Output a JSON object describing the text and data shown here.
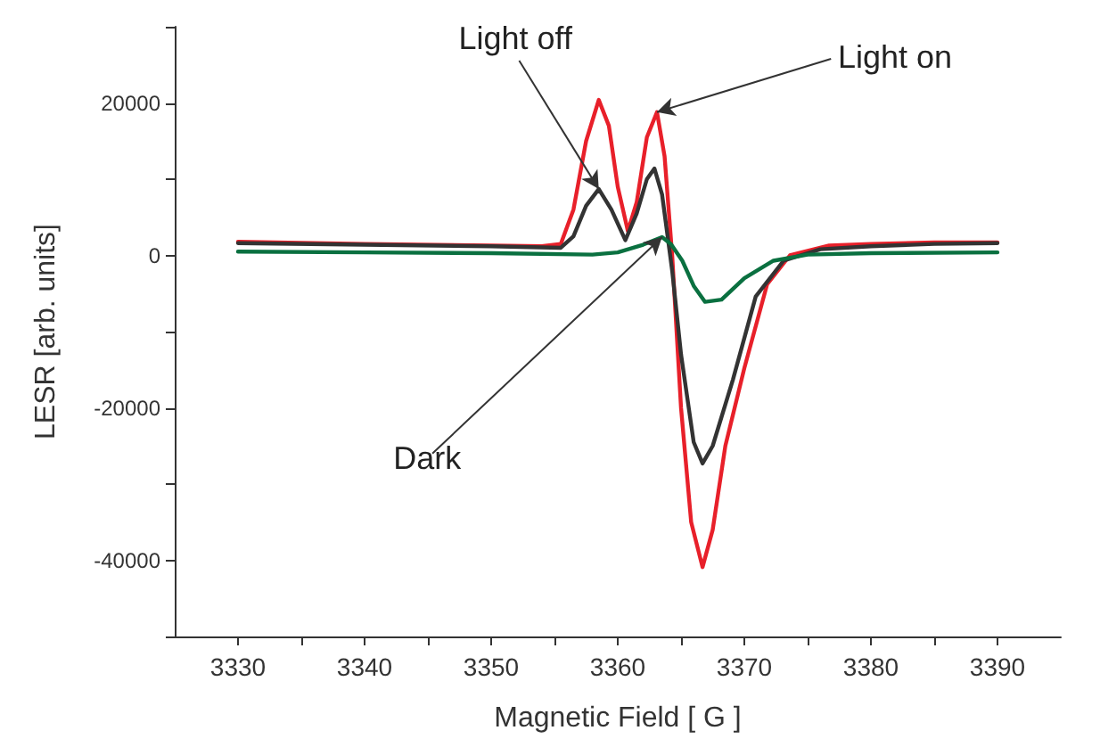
{
  "chart_data": {
    "type": "line",
    "xlabel": "Magnetic Field [ G ]",
    "ylabel": "LESR [arb. units]",
    "xlim": [
      3325,
      3395
    ],
    "xticks": [
      3330,
      {
        "value": 3335,
        "label": null
      },
      3340,
      {
        "value": 3345,
        "label": null
      },
      3350,
      {
        "value": 3355,
        "label": null
      },
      3360,
      {
        "value": 3365,
        "label": null
      },
      3370,
      {
        "value": 3375,
        "label": null
      },
      3380,
      {
        "value": 3385,
        "label": null
      },
      3390
    ],
    "ylim": [
      -50000,
      30000
    ],
    "yticks": [
      {
        "value": -50000,
        "label": null
      },
      -40000,
      {
        "value": -30000,
        "label": null
      },
      -20000,
      {
        "value": -10000,
        "label": null
      },
      0,
      {
        "value": 10000,
        "label": null
      },
      20000,
      {
        "value": 30000,
        "label": null
      }
    ],
    "grid": false,
    "marker": "none",
    "line_style": "solid",
    "series": [
      {
        "color": "#e8202a",
        "x": [
          3330,
          3340,
          3350,
          3354,
          3355.5,
          3356.5,
          3357.5,
          3358.5,
          3359.3,
          3360,
          3360.8,
          3361.5,
          3362.3,
          3363.1,
          3363.7,
          3364.3,
          3365,
          3365.8,
          3366.7,
          3367.5,
          3368.5,
          3370,
          3371.8,
          3373.6,
          3376.7,
          3380,
          3385,
          3390
        ],
        "values": [
          1800,
          1500,
          1300,
          1200,
          1500,
          6000,
          15000,
          20400,
          17000,
          9000,
          3200,
          7000,
          15500,
          18800,
          13000,
          0,
          -20000,
          -35000,
          -40900,
          -36000,
          -25000,
          -14800,
          -3800,
          0,
          1300,
          1500,
          1700,
          1700
        ]
      },
      {
        "color": "#333333",
        "x": [
          3330,
          3340,
          3350,
          3355.5,
          3356.5,
          3357.5,
          3358.5,
          3359.5,
          3360.6,
          3361.5,
          3362.3,
          3362.9,
          3363.5,
          3364.3,
          3365,
          3366,
          3366.7,
          3367.5,
          3369.1,
          3370.9,
          3373.1,
          3376,
          3380,
          3385,
          3390
        ],
        "values": [
          1600,
          1400,
          1200,
          1000,
          2500,
          6500,
          8700,
          6000,
          2000,
          5500,
          10000,
          11400,
          8000,
          -2000,
          -13000,
          -24500,
          -27300,
          -25000,
          -16300,
          -5400,
          -700,
          800,
          1200,
          1500,
          1600
        ]
      },
      {
        "color": "#0a7040",
        "x": [
          3330,
          3340,
          3350,
          3358,
          3360,
          3362,
          3363.5,
          3364.2,
          3365.1,
          3366,
          3366.9,
          3368.2,
          3370,
          3372.3,
          3375,
          3380,
          3390
        ],
        "values": [
          500,
          400,
          300,
          100,
          400,
          1400,
          2400,
          1500,
          -700,
          -4000,
          -6100,
          -5800,
          -3000,
          -700,
          100,
          300,
          400
        ]
      }
    ],
    "annotations": [
      {
        "text": "Light off",
        "x": 3358.5,
        "y": 8700
      },
      {
        "text": "Light on",
        "x": 3363.1,
        "y": 18800
      },
      {
        "text": "Dark",
        "x": 3363.5,
        "y": 2400
      }
    ]
  }
}
